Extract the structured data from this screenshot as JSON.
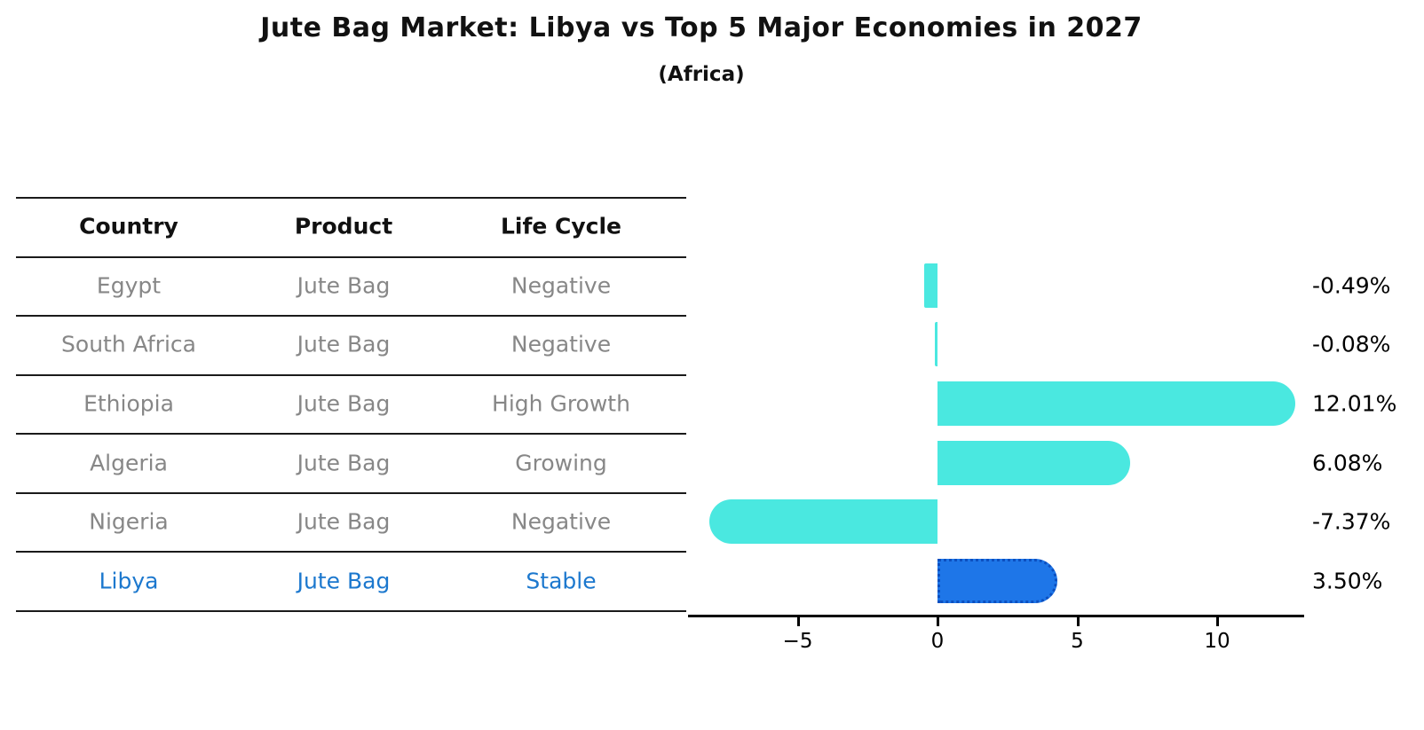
{
  "title": "Jute Bag Market: Libya vs Top 5 Major Economies in 2027",
  "subtitle": "(Africa)",
  "table": {
    "headers": [
      "Country",
      "Product",
      "Life Cycle"
    ],
    "rows": [
      {
        "country": "Egypt",
        "product": "Jute Bag",
        "life_cycle": "Negative",
        "highlight": false
      },
      {
        "country": "South Africa",
        "product": "Jute Bag",
        "life_cycle": "Negative",
        "highlight": false
      },
      {
        "country": "Ethiopia",
        "product": "Jute Bag",
        "life_cycle": "High Growth",
        "highlight": false
      },
      {
        "country": "Algeria",
        "product": "Jute Bag",
        "life_cycle": "Growing",
        "highlight": false
      },
      {
        "country": "Nigeria",
        "product": "Jute Bag",
        "life_cycle": "Negative",
        "highlight": false
      },
      {
        "country": "Libya",
        "product": "Jute Bag",
        "life_cycle": "Stable",
        "highlight": true
      }
    ]
  },
  "chart_data": {
    "type": "bar",
    "orientation": "horizontal",
    "title": "Jute Bag Market: Libya vs Top 5 Major Economies in 2027 (Africa)",
    "categories": [
      "Egypt",
      "South Africa",
      "Ethiopia",
      "Algeria",
      "Nigeria",
      "Libya"
    ],
    "values": [
      -0.49,
      -0.08,
      12.01,
      6.08,
      -7.37,
      3.5
    ],
    "value_labels": [
      "-0.49%",
      "-0.08%",
      "12.01%",
      "6.08%",
      "-7.37%",
      "3.50%"
    ],
    "x_ticks": [
      {
        "value": -5,
        "label": "−5"
      },
      {
        "value": 0,
        "label": "0"
      },
      {
        "value": 5,
        "label": "5"
      },
      {
        "value": 10,
        "label": "10"
      }
    ],
    "xlim": [
      -8.9,
      13.1
    ],
    "grid": false,
    "legend": null,
    "highlight_index": 5,
    "bar_color": "#4AE8E0",
    "highlight_color": "#1E76E8",
    "highlight_border_color": "#0C4FC0"
  },
  "colors": {
    "text_muted": "#878787",
    "text_highlight": "#1C78CE",
    "text_black": "#111111",
    "rule_line": "#1a1a1a"
  }
}
